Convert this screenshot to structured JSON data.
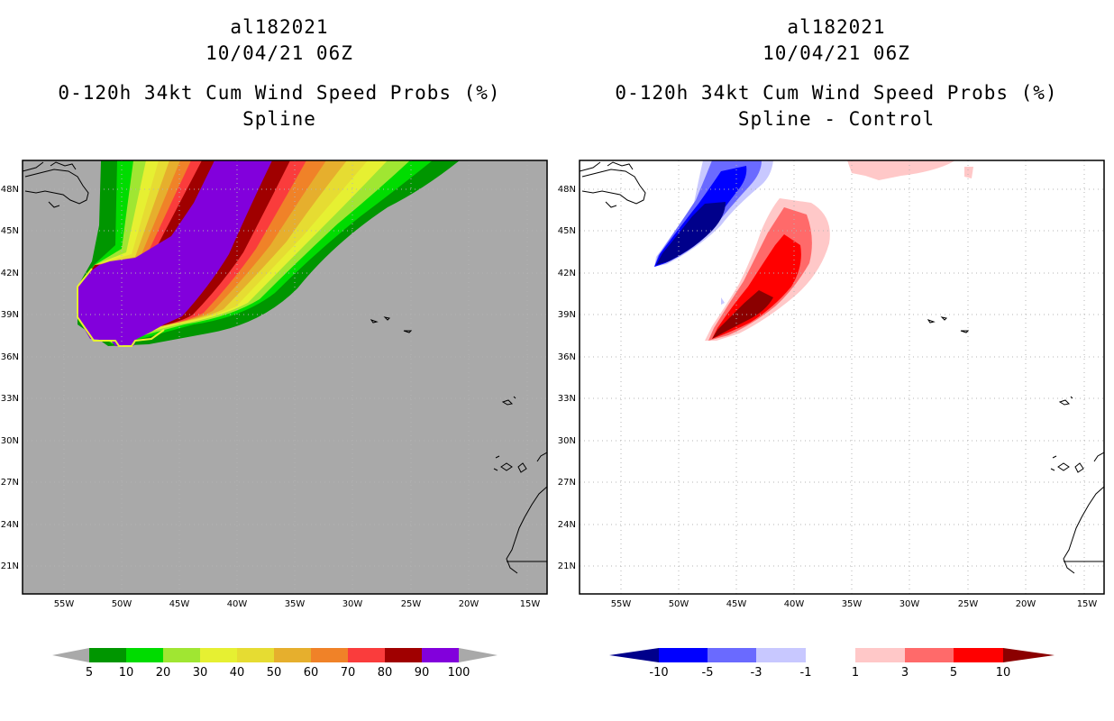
{
  "panels": {
    "left": {
      "title_lines": [
        "al182021",
        "10/04/21 06Z",
        "0-120h 34kt Cum Wind Speed Probs (%)",
        "Spline"
      ]
    },
    "right": {
      "title_lines": [
        "al182021",
        "10/04/21 06Z",
        "0-120h 34kt Cum Wind Speed Probs (%)",
        "Spline - Control"
      ]
    }
  },
  "map_axes": {
    "lat_labels": [
      "48N",
      "45N",
      "42N",
      "39N",
      "36N",
      "33N",
      "30N",
      "27N",
      "24N",
      "21N"
    ],
    "lon_labels": [
      "55W",
      "50W",
      "45W",
      "40W",
      "35W",
      "30W",
      "25W",
      "20W",
      "15W"
    ]
  },
  "colorbars": {
    "left": {
      "labels": [
        "5",
        "10",
        "20",
        "30",
        "40",
        "50",
        "60",
        "70",
        "80",
        "90",
        "100"
      ],
      "colors": [
        "#a9a9a9",
        "#009600",
        "#00dc00",
        "#a0e632",
        "#e6f032",
        "#e6dc32",
        "#e6af2d",
        "#f08228",
        "#fa3c3c",
        "#a00000",
        "#8200dc",
        "#a9a9a9"
      ]
    },
    "right": {
      "labels": [
        "-10",
        "-5",
        "-3",
        "-1",
        "1",
        "3",
        "5",
        "10"
      ],
      "colors": [
        "#00008b",
        "#0000ff",
        "#6a6aff",
        "#c8c8ff",
        "#ffffff",
        "#ffc8c8",
        "#ff6a6a",
        "#ff0000",
        "#8b0000"
      ]
    }
  },
  "colors": {
    "ocean": "#a9a9a9",
    "grid": "#b4b4b4"
  }
}
